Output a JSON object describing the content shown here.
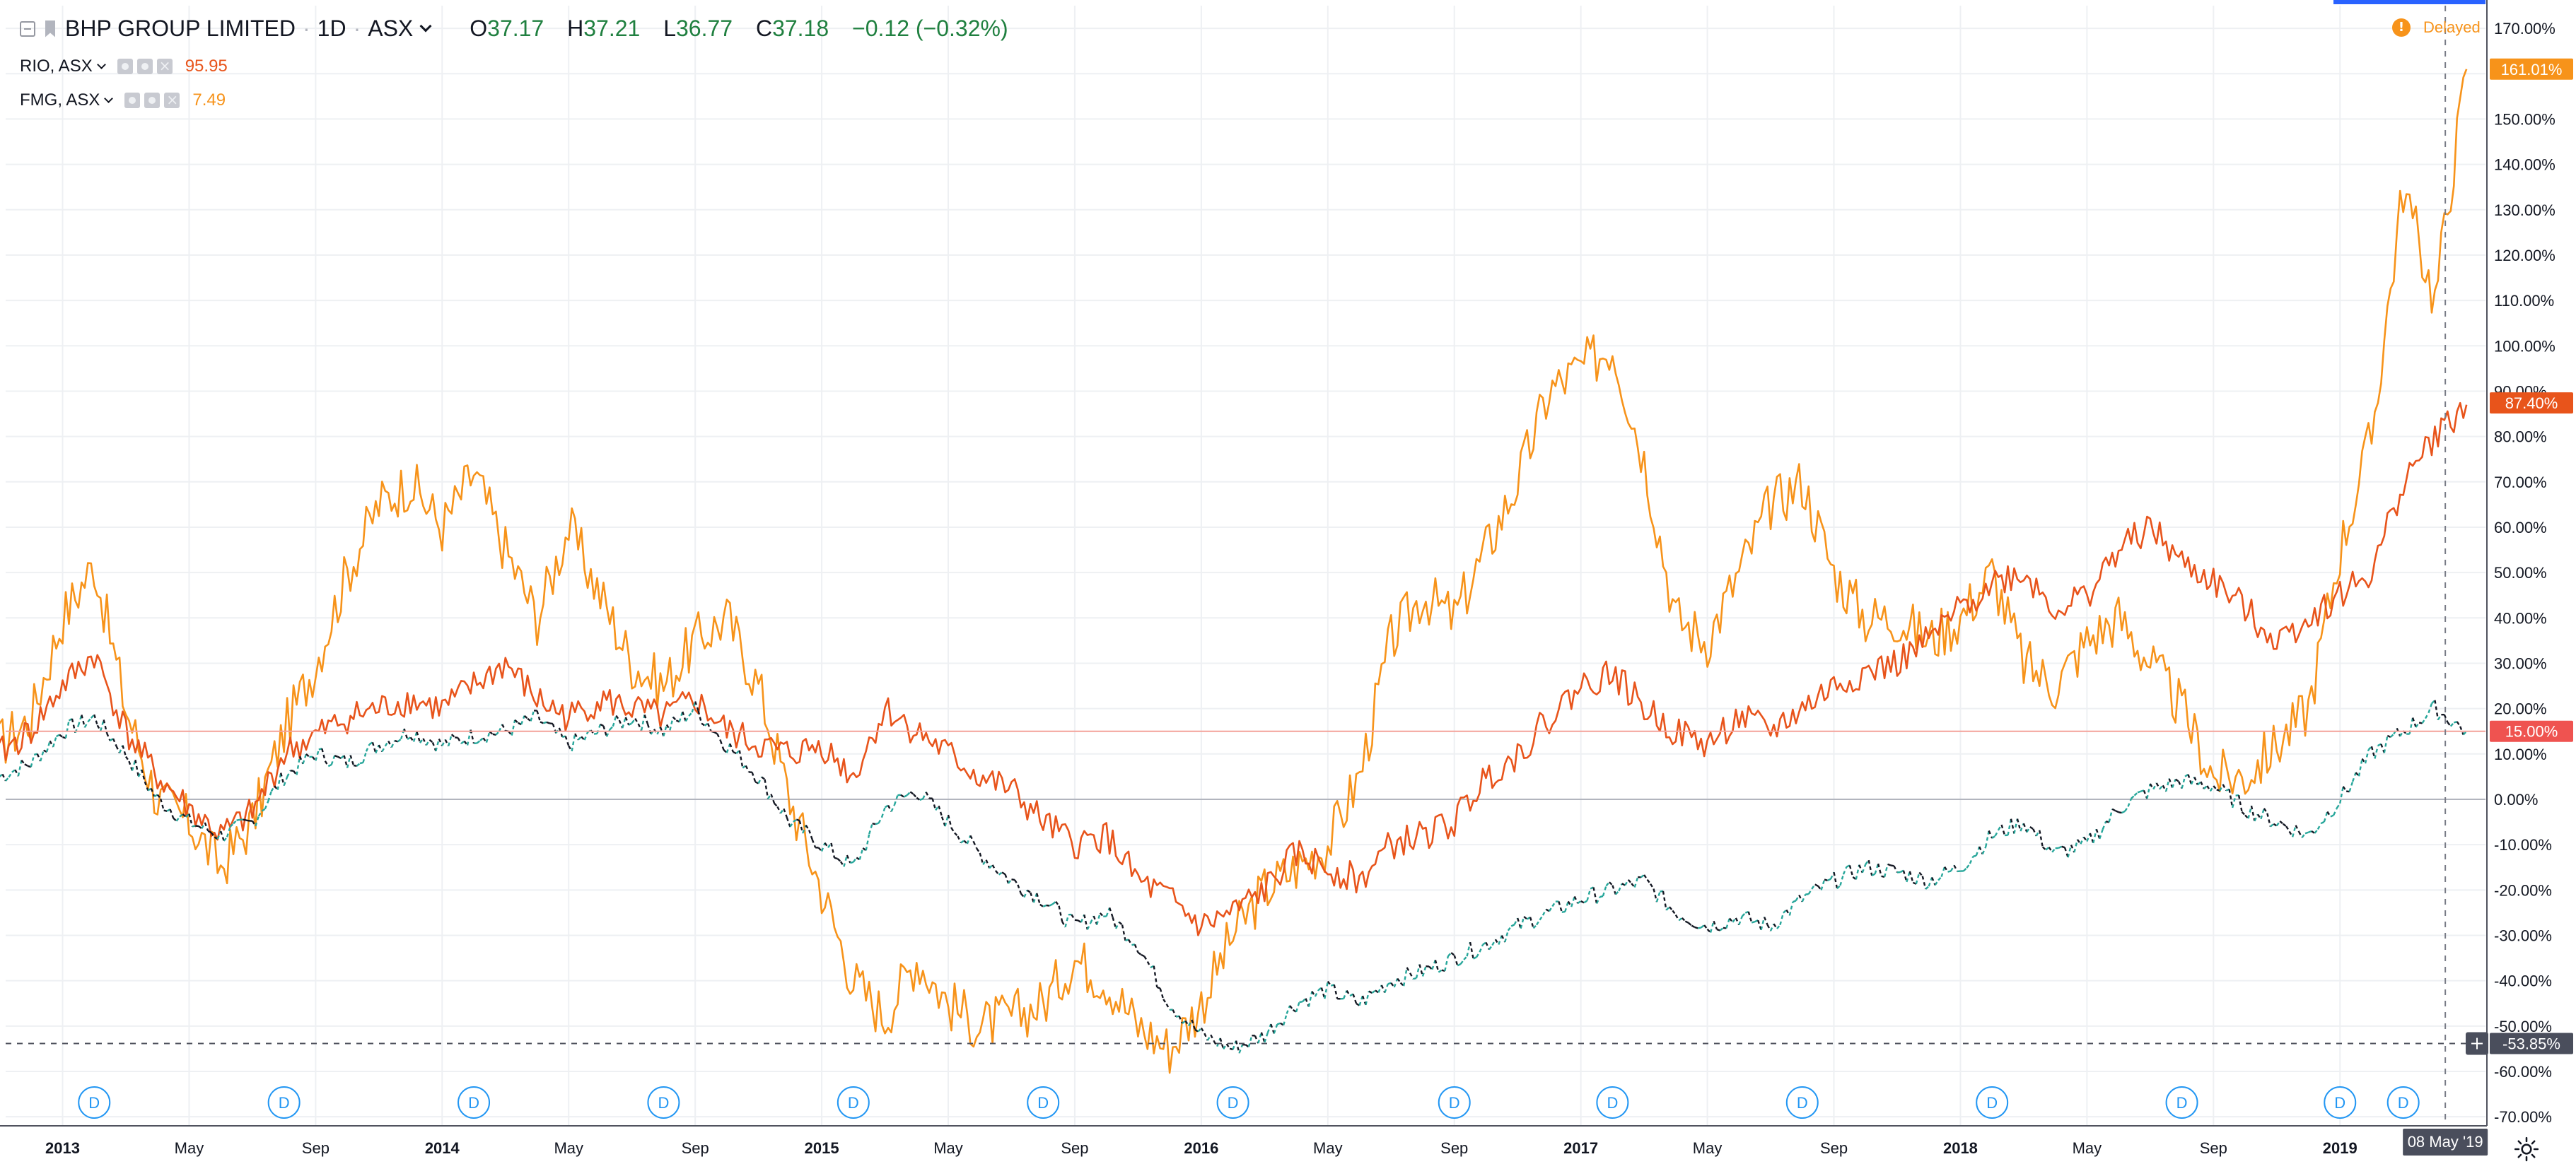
{
  "header": {
    "main_symbol": "BHP GROUP LIMITED",
    "interval": "1D",
    "exchange": "ASX",
    "ohlc": {
      "o_label": "O",
      "o": "37.17",
      "h_label": "H",
      "h": "37.21",
      "l_label": "L",
      "l": "36.77",
      "c_label": "C",
      "c": "37.18",
      "change": "−0.12 (−0.32%)"
    },
    "compare": [
      {
        "symbol": "RIO, ASX",
        "value": "95.95"
      },
      {
        "symbol": "FMG, ASX",
        "value": "7.49"
      }
    ],
    "delayed_label": "Delayed"
  },
  "colors": {
    "bhp_up": "#26a69a",
    "bhp_down": "#131722",
    "rio": "#e8541b",
    "fmg": "#f7931a",
    "grid": "#eef0f3",
    "axis_text": "#131722"
  },
  "icons": [
    "collapse-icon",
    "flag-icon",
    "chevron-down-icon",
    "eye-icon",
    "gear-icon",
    "close-icon",
    "alert-icon",
    "settings-gear-icon",
    "crosshair-plus-icon"
  ],
  "chart_data": {
    "type": "line",
    "scale": "percent",
    "grid": true,
    "x_ticks": [
      "2013",
      "May",
      "Sep",
      "2014",
      "May",
      "Sep",
      "2015",
      "May",
      "Sep",
      "2016",
      "May",
      "Sep",
      "2017",
      "May",
      "Sep",
      "2018",
      "May",
      "Sep",
      "2019"
    ],
    "y_ticks": [
      "170.00%",
      "160.00%",
      "150.00%",
      "140.00%",
      "130.00%",
      "120.00%",
      "110.00%",
      "100.00%",
      "90.00%",
      "80.00%",
      "70.00%",
      "60.00%",
      "50.00%",
      "40.00%",
      "30.00%",
      "20.00%",
      "10.00%",
      "0.00%",
      "-10.00%",
      "-20.00%",
      "-30.00%",
      "-40.00%",
      "-50.00%",
      "-60.00%",
      "-70.00%"
    ],
    "y_range": [
      -70,
      170
    ],
    "x_range": [
      "2012-11",
      "2019-05"
    ],
    "series": [
      {
        "name": "BHP GROUP LIMITED",
        "style": "candles",
        "x": [
          "2012-11",
          "2012-12",
          "2013-01",
          "2013-02",
          "2013-03",
          "2013-04",
          "2013-05",
          "2013-06",
          "2013-07",
          "2013-08",
          "2013-09",
          "2013-10",
          "2013-11",
          "2013-12",
          "2014-01",
          "2014-02",
          "2014-03",
          "2014-04",
          "2014-05",
          "2014-06",
          "2014-07",
          "2014-08",
          "2014-09",
          "2014-10",
          "2014-11",
          "2014-12",
          "2015-01",
          "2015-02",
          "2015-03",
          "2015-04",
          "2015-05",
          "2015-06",
          "2015-07",
          "2015-08",
          "2015-09",
          "2015-10",
          "2015-11",
          "2015-12",
          "2016-01",
          "2016-02",
          "2016-03",
          "2016-04",
          "2016-05",
          "2016-06",
          "2016-07",
          "2016-08",
          "2016-09",
          "2016-10",
          "2016-11",
          "2016-12",
          "2017-01",
          "2017-02",
          "2017-03",
          "2017-04",
          "2017-05",
          "2017-06",
          "2017-07",
          "2017-08",
          "2017-09",
          "2017-10",
          "2017-11",
          "2017-12",
          "2018-01",
          "2018-02",
          "2018-03",
          "2018-04",
          "2018-05",
          "2018-06",
          "2018-07",
          "2018-08",
          "2018-09",
          "2018-10",
          "2018-11",
          "2018-12",
          "2019-01",
          "2019-02",
          "2019-03",
          "2019-04",
          "2019-05"
        ],
        "values": [
          5,
          8,
          15,
          18,
          10,
          0,
          -5,
          -8,
          -5,
          5,
          10,
          8,
          12,
          15,
          12,
          14,
          15,
          18,
          12,
          15,
          18,
          15,
          20,
          12,
          5,
          -5,
          -10,
          -15,
          -2,
          2,
          -5,
          -12,
          -18,
          -22,
          -28,
          -25,
          -32,
          -45,
          -52,
          -55,
          -52,
          -45,
          -42,
          -45,
          -40,
          -38,
          -35,
          -32,
          -28,
          -25,
          -22,
          -20,
          -18,
          -25,
          -28,
          -26,
          -28,
          -22,
          -18,
          -15,
          -16,
          -18,
          -15,
          -8,
          -5,
          -12,
          -10,
          -2,
          2,
          4,
          3,
          -2,
          -5,
          -8,
          0,
          10,
          15,
          20,
          15
        ]
      },
      {
        "name": "RIO, ASX",
        "style": "line",
        "x": [
          "2012-11",
          "2012-12",
          "2013-01",
          "2013-02",
          "2013-03",
          "2013-04",
          "2013-05",
          "2013-06",
          "2013-07",
          "2013-08",
          "2013-09",
          "2013-10",
          "2013-11",
          "2013-12",
          "2014-01",
          "2014-02",
          "2014-03",
          "2014-04",
          "2014-05",
          "2014-06",
          "2014-07",
          "2014-08",
          "2014-09",
          "2014-10",
          "2014-11",
          "2014-12",
          "2015-01",
          "2015-02",
          "2015-03",
          "2015-04",
          "2015-05",
          "2015-06",
          "2015-07",
          "2015-08",
          "2015-09",
          "2015-10",
          "2015-11",
          "2015-12",
          "2016-01",
          "2016-02",
          "2016-03",
          "2016-04",
          "2016-05",
          "2016-06",
          "2016-07",
          "2016-08",
          "2016-09",
          "2016-10",
          "2016-11",
          "2016-12",
          "2017-01",
          "2017-02",
          "2017-03",
          "2017-04",
          "2017-05",
          "2017-06",
          "2017-07",
          "2017-08",
          "2017-09",
          "2017-10",
          "2017-11",
          "2017-12",
          "2018-01",
          "2018-02",
          "2018-03",
          "2018-04",
          "2018-05",
          "2018-06",
          "2018-07",
          "2018-08",
          "2018-09",
          "2018-10",
          "2018-11",
          "2018-12",
          "2019-01",
          "2019-02",
          "2019-03",
          "2019-04",
          "2019-05"
        ],
        "values": [
          10,
          15,
          25,
          32,
          15,
          5,
          -2,
          -8,
          -3,
          10,
          14,
          18,
          20,
          22,
          20,
          25,
          30,
          22,
          18,
          22,
          20,
          18,
          22,
          15,
          12,
          10,
          12,
          5,
          20,
          15,
          10,
          5,
          2,
          -5,
          -10,
          -8,
          -18,
          -22,
          -28,
          -25,
          -20,
          -12,
          -15,
          -18,
          -10,
          -8,
          -5,
          5,
          10,
          18,
          25,
          28,
          20,
          15,
          12,
          18,
          15,
          20,
          25,
          28,
          30,
          35,
          42,
          48,
          50,
          42,
          45,
          55,
          60,
          52,
          48,
          42,
          35,
          40,
          45,
          50,
          70,
          80,
          87
        ]
      },
      {
        "name": "FMG, ASX",
        "style": "line",
        "x": [
          "2012-11",
          "2012-12",
          "2013-01",
          "2013-02",
          "2013-03",
          "2013-04",
          "2013-05",
          "2013-06",
          "2013-07",
          "2013-08",
          "2013-09",
          "2013-10",
          "2013-11",
          "2013-12",
          "2014-01",
          "2014-02",
          "2014-03",
          "2014-04",
          "2014-05",
          "2014-06",
          "2014-07",
          "2014-08",
          "2014-09",
          "2014-10",
          "2014-11",
          "2014-12",
          "2015-01",
          "2015-02",
          "2015-03",
          "2015-04",
          "2015-05",
          "2015-06",
          "2015-07",
          "2015-08",
          "2015-09",
          "2015-10",
          "2015-11",
          "2015-12",
          "2016-01",
          "2016-02",
          "2016-03",
          "2016-04",
          "2016-05",
          "2016-06",
          "2016-07",
          "2016-08",
          "2016-09",
          "2016-10",
          "2016-11",
          "2016-12",
          "2017-01",
          "2017-02",
          "2017-03",
          "2017-04",
          "2017-05",
          "2017-06",
          "2017-07",
          "2017-08",
          "2017-09",
          "2017-10",
          "2017-11",
          "2017-12",
          "2018-01",
          "2018-02",
          "2018-03",
          "2018-04",
          "2018-05",
          "2018-06",
          "2018-07",
          "2018-08",
          "2018-09",
          "2018-10",
          "2018-11",
          "2018-12",
          "2019-01",
          "2019-02",
          "2019-03",
          "2019-04",
          "2019-05"
        ],
        "values": [
          12,
          18,
          40,
          52,
          20,
          0,
          -5,
          -15,
          -5,
          15,
          30,
          50,
          65,
          70,
          60,
          72,
          55,
          40,
          60,
          45,
          30,
          25,
          35,
          40,
          25,
          0,
          -20,
          -40,
          -48,
          -35,
          -45,
          -50,
          -48,
          -45,
          -35,
          -40,
          -50,
          -55,
          -45,
          -30,
          -20,
          -15,
          -10,
          5,
          35,
          45,
          40,
          55,
          70,
          90,
          95,
          100,
          75,
          40,
          35,
          50,
          65,
          70,
          50,
          40,
          40,
          35,
          40,
          50,
          30,
          25,
          35,
          40,
          30,
          20,
          5,
          5,
          12,
          20,
          55,
          80,
          135,
          110,
          161
        ]
      }
    ]
  },
  "price_axis": {
    "fmg_label": "161.01%",
    "rio_label": "87.40%",
    "bhp_label": "15.00%",
    "crosshair_label": "-53.85%"
  },
  "time_axis": {
    "crosshair_label": "08 May '19"
  },
  "dividend_markers": [
    "D",
    "D",
    "D",
    "D",
    "D",
    "D",
    "D",
    "D",
    "D",
    "D",
    "D",
    "D",
    "D"
  ]
}
